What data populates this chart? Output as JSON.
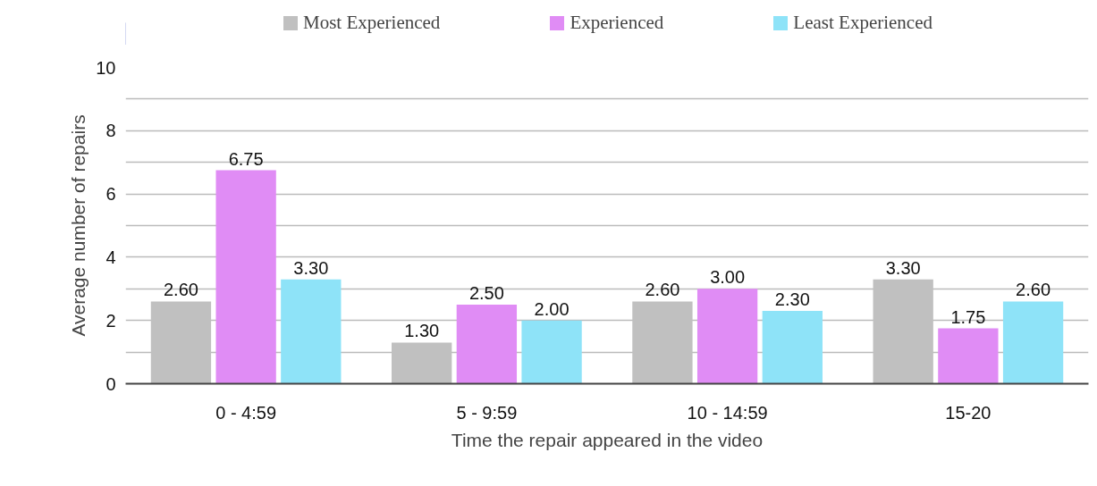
{
  "chart_data": {
    "type": "bar",
    "xlabel": "Time the repair appeared in the video",
    "ylabel": "Average number of repairs",
    "categories": [
      "0 - 4:59",
      "5 - 9:59",
      "10 - 14:59",
      "15-20"
    ],
    "series": [
      {
        "name": "Most Experienced",
        "color": "#c0c0c0",
        "values": [
          2.6,
          1.3,
          2.6,
          3.3
        ],
        "value_labels": [
          "2.60",
          "1.30",
          "2.60",
          "3.30"
        ]
      },
      {
        "name": "Experienced",
        "color": "#e08cf5",
        "values": [
          6.75,
          2.5,
          3.0,
          1.75
        ],
        "value_labels": [
          "6.75",
          "2.50",
          "3.00",
          "1.75"
        ]
      },
      {
        "name": "Least Experienced",
        "color": "#8ee3f8",
        "values": [
          3.3,
          2.0,
          2.3,
          2.6
        ],
        "value_labels": [
          "3.30",
          "2.00",
          "2.30",
          "2.60"
        ]
      }
    ],
    "ylim": [
      0,
      10
    ],
    "yticks": [
      0,
      {
        "value": 1,
        "label": null
      },
      2,
      {
        "value": 3,
        "label": null
      },
      4,
      {
        "value": 5,
        "label": null
      },
      6,
      {
        "value": 7,
        "label": null
      },
      8,
      {
        "value": 9,
        "label": null
      },
      10
    ],
    "grid": "y",
    "legend": "top"
  }
}
